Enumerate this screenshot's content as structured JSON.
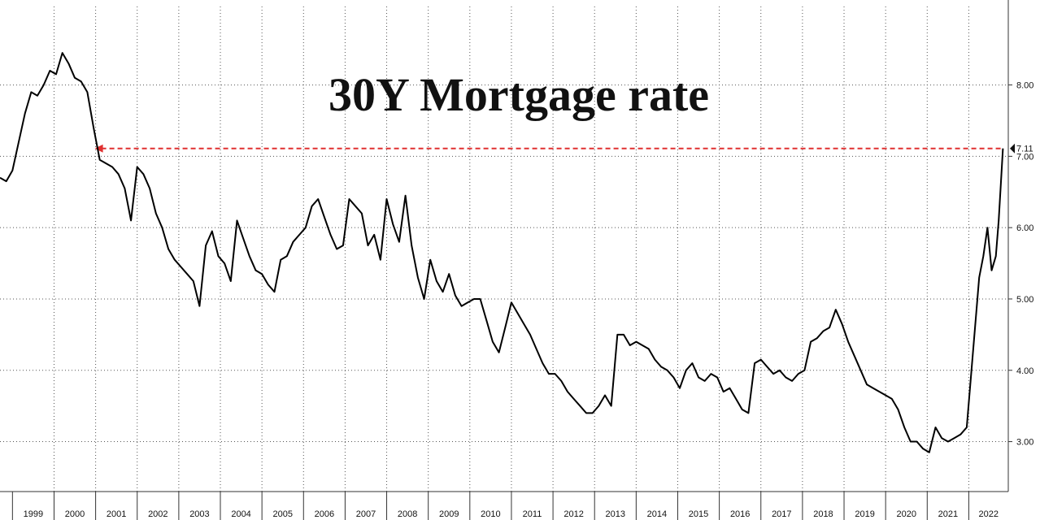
{
  "chart_data": {
    "type": "line",
    "title": "30Y Mortgage rate",
    "ylim": [
      2.3,
      9.1
    ],
    "xlim": [
      1998.7,
      2022.95
    ],
    "grid": true,
    "y_ticks": [
      3,
      4,
      5,
      6,
      7,
      8
    ],
    "y_tick_labels": [
      "3.00",
      "4.00",
      "5.00",
      "6.00",
      "7.00",
      "8.00"
    ],
    "x_tick_labels": [
      "1999",
      "2000",
      "2001",
      "2002",
      "2003",
      "2004",
      "2005",
      "2006",
      "2007",
      "2008",
      "2009",
      "2010",
      "2011",
      "2012",
      "2013",
      "2014",
      "2015",
      "2016",
      "2017",
      "2018",
      "2019",
      "2020",
      "2021",
      "2022"
    ],
    "last_value_label": "7.11",
    "reference_line": {
      "value": 7.11,
      "from_x": 2000.98,
      "to_x": 2022.82
    },
    "series": [
      {
        "x": [
          1998.7,
          1998.85,
          1999.0,
          1999.15,
          1999.3,
          1999.45,
          1999.6,
          1999.75,
          1999.9,
          2000.05,
          2000.2,
          2000.35,
          2000.5,
          2000.65,
          2000.8,
          2000.95,
          2001.1,
          2001.25,
          2001.4,
          2001.55,
          2001.7,
          2001.85,
          2002.0,
          2002.15,
          2002.3,
          2002.45,
          2002.6,
          2002.75,
          2002.9,
          2003.05,
          2003.2,
          2003.35,
          2003.5,
          2003.65,
          2003.8,
          2003.95,
          2004.1,
          2004.25,
          2004.4,
          2004.55,
          2004.7,
          2004.85,
          2005.0,
          2005.15,
          2005.3,
          2005.45,
          2005.6,
          2005.75,
          2005.9,
          2006.05,
          2006.2,
          2006.35,
          2006.5,
          2006.65,
          2006.8,
          2006.95,
          2007.1,
          2007.25,
          2007.4,
          2007.55,
          2007.7,
          2007.85,
          2008.0,
          2008.15,
          2008.3,
          2008.45,
          2008.6,
          2008.75,
          2008.9,
          2009.05,
          2009.2,
          2009.35,
          2009.5,
          2009.65,
          2009.8,
          2009.95,
          2010.1,
          2010.25,
          2010.4,
          2010.55,
          2010.7,
          2010.85,
          2011.0,
          2011.15,
          2011.3,
          2011.45,
          2011.6,
          2011.75,
          2011.9,
          2012.05,
          2012.2,
          2012.35,
          2012.5,
          2012.65,
          2012.8,
          2012.95,
          2013.1,
          2013.25,
          2013.4,
          2013.55,
          2013.7,
          2013.85,
          2014.0,
          2014.15,
          2014.3,
          2014.45,
          2014.6,
          2014.75,
          2014.9,
          2015.05,
          2015.2,
          2015.35,
          2015.5,
          2015.65,
          2015.8,
          2015.95,
          2016.1,
          2016.25,
          2016.4,
          2016.55,
          2016.7,
          2016.85,
          2017.0,
          2017.15,
          2017.3,
          2017.45,
          2017.6,
          2017.75,
          2017.9,
          2018.05,
          2018.2,
          2018.35,
          2018.5,
          2018.65,
          2018.8,
          2018.95,
          2019.1,
          2019.25,
          2019.4,
          2019.55,
          2019.7,
          2019.85,
          2020.0,
          2020.15,
          2020.3,
          2020.45,
          2020.6,
          2020.75,
          2020.9,
          2021.05,
          2021.2,
          2021.35,
          2021.5,
          2021.65,
          2021.8,
          2021.95,
          2022.05,
          2022.15,
          2022.25,
          2022.35,
          2022.45,
          2022.55,
          2022.65,
          2022.72,
          2022.78,
          2022.82
        ],
        "values": [
          6.7,
          6.65,
          6.8,
          7.2,
          7.6,
          7.9,
          7.85,
          8.0,
          8.2,
          8.15,
          8.45,
          8.3,
          8.1,
          8.05,
          7.9,
          7.4,
          6.95,
          6.9,
          6.85,
          6.75,
          6.55,
          6.1,
          6.85,
          6.75,
          6.55,
          6.2,
          6.0,
          5.7,
          5.55,
          5.45,
          5.35,
          5.25,
          4.9,
          5.75,
          5.95,
          5.6,
          5.5,
          5.25,
          6.1,
          5.85,
          5.6,
          5.4,
          5.35,
          5.2,
          5.1,
          5.55,
          5.6,
          5.8,
          5.9,
          6.0,
          6.3,
          6.4,
          6.15,
          5.9,
          5.7,
          5.75,
          6.4,
          6.3,
          6.2,
          5.75,
          5.9,
          5.55,
          6.4,
          6.05,
          5.8,
          6.45,
          5.75,
          5.3,
          5.0,
          5.55,
          5.25,
          5.1,
          5.35,
          5.05,
          4.9,
          4.95,
          5.0,
          5.0,
          4.7,
          4.4,
          4.25,
          4.6,
          4.95,
          4.8,
          4.65,
          4.5,
          4.3,
          4.1,
          3.95,
          3.95,
          3.85,
          3.7,
          3.6,
          3.5,
          3.4,
          3.4,
          3.5,
          3.65,
          3.5,
          4.5,
          4.5,
          4.35,
          4.4,
          4.35,
          4.3,
          4.15,
          4.05,
          4.0,
          3.9,
          3.75,
          4.0,
          4.1,
          3.9,
          3.85,
          3.95,
          3.9,
          3.7,
          3.75,
          3.6,
          3.45,
          3.4,
          4.1,
          4.15,
          4.05,
          3.95,
          4.0,
          3.9,
          3.85,
          3.95,
          4.0,
          4.4,
          4.45,
          4.55,
          4.6,
          4.85,
          4.65,
          4.4,
          4.2,
          4.0,
          3.8,
          3.75,
          3.7,
          3.65,
          3.6,
          3.45,
          3.2,
          3.0,
          3.0,
          2.9,
          2.85,
          3.2,
          3.05,
          3.0,
          3.05,
          3.1,
          3.2,
          3.9,
          4.6,
          5.3,
          5.6,
          6.0,
          5.4,
          5.6,
          6.1,
          6.7,
          7.11
        ]
      }
    ]
  }
}
